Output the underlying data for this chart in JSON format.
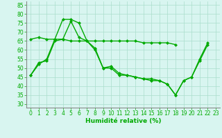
{
  "xlabel": "Humidité relative (%)",
  "bg_color": "#d8f5f0",
  "grid_color": "#aaddcc",
  "line_color": "#00aa00",
  "tick_color": "#00aa00",
  "marker": "D",
  "markersize": 2.0,
  "linewidth": 1.0,
  "ylim": [
    28,
    87
  ],
  "xlim": [
    -0.5,
    23.5
  ],
  "yticks": [
    30,
    35,
    40,
    45,
    50,
    55,
    60,
    65,
    70,
    75,
    80,
    85
  ],
  "xticks": [
    0,
    1,
    2,
    3,
    4,
    5,
    6,
    7,
    8,
    9,
    10,
    11,
    12,
    13,
    14,
    15,
    16,
    17,
    18,
    19,
    20,
    21,
    22,
    23
  ],
  "series": [
    [
      46,
      53,
      54,
      65,
      66,
      76,
      67,
      65,
      60,
      50,
      50,
      46,
      46,
      45,
      44,
      44,
      43,
      41,
      35,
      43,
      45,
      55,
      64
    ],
    [
      46,
      52,
      55,
      66,
      77,
      77,
      75,
      65,
      61,
      50,
      51,
      47,
      46,
      45,
      44,
      43,
      43,
      41,
      35,
      43,
      45,
      54,
      63
    ],
    [
      66,
      67,
      66,
      66,
      66,
      65,
      65,
      65,
      65,
      65,
      65,
      65,
      65,
      65,
      64,
      64,
      64,
      64,
      63
    ]
  ],
  "series_x": [
    [
      0,
      1,
      2,
      3,
      4,
      5,
      6,
      7,
      8,
      9,
      10,
      11,
      12,
      13,
      14,
      15,
      16,
      17,
      18,
      19,
      20,
      21,
      22
    ],
    [
      0,
      1,
      2,
      3,
      4,
      5,
      6,
      7,
      8,
      9,
      10,
      11,
      12,
      13,
      14,
      15,
      16,
      17,
      18,
      19,
      20,
      21,
      22
    ],
    [
      0,
      1,
      2,
      3,
      4,
      5,
      6,
      7,
      8,
      9,
      10,
      11,
      12,
      13,
      14,
      15,
      16,
      17,
      18
    ]
  ],
  "tick_fontsize": 5.5,
  "xlabel_fontsize": 6.5,
  "xlabel_fontweight": "bold"
}
